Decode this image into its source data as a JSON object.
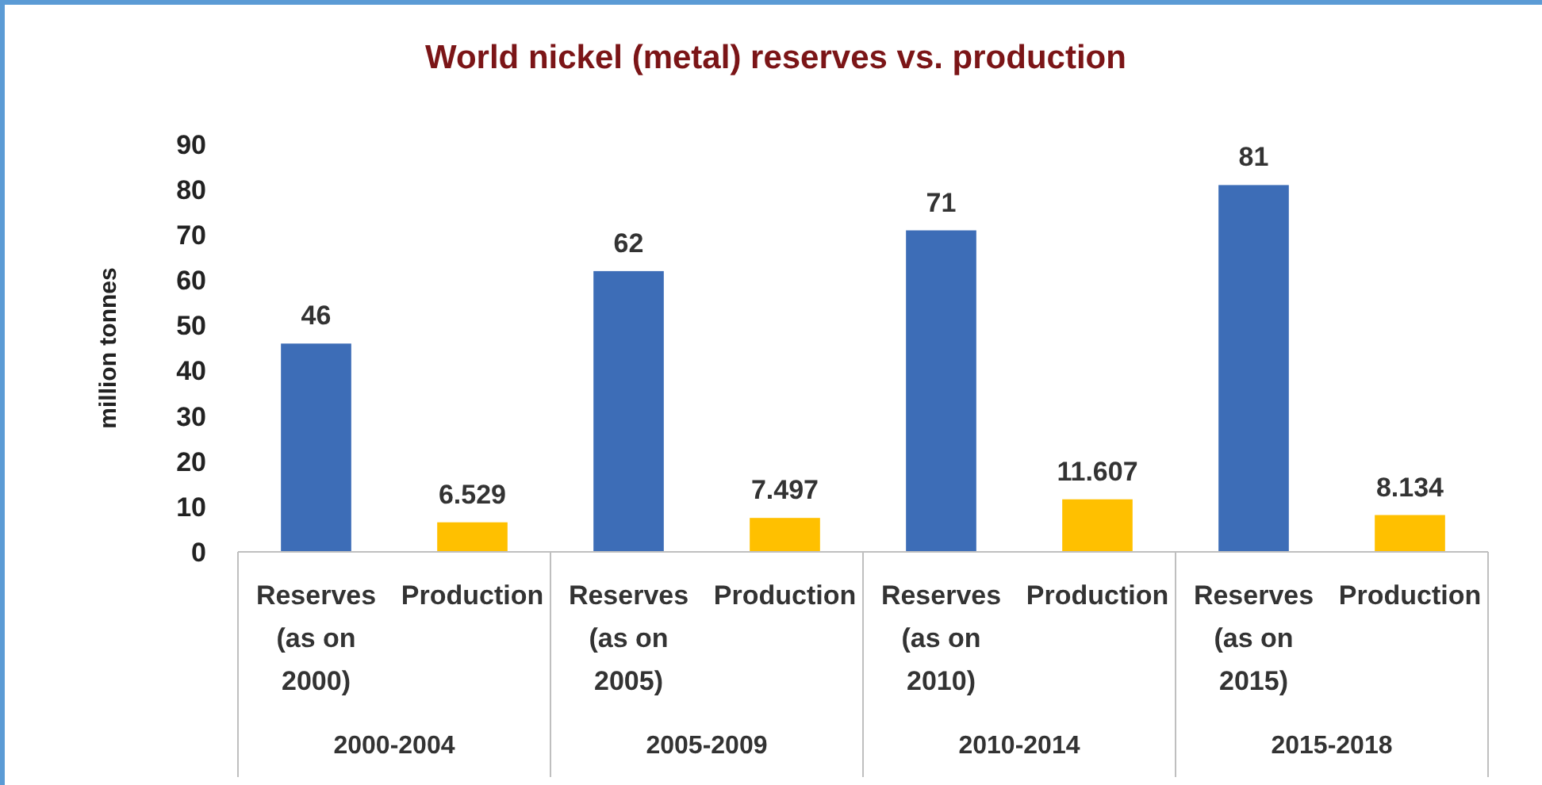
{
  "chart_data": {
    "type": "bar",
    "title": "World nickel (metal) reserves vs. production",
    "ylabel": "million tonnes",
    "categories": [
      "Reserves (as on 2000)",
      "Production",
      "Reserves (as on 2005)",
      "Production",
      "Reserves (as on 2010)",
      "Production",
      "Reserves (as on 2015)",
      "Production"
    ],
    "values": [
      46,
      6.529,
      62,
      7.497,
      71,
      11.607,
      81,
      8.134
    ],
    "colors": [
      "#3d6db7",
      "#ffc000",
      "#3d6db7",
      "#ffc000",
      "#3d6db7",
      "#ffc000",
      "#3d6db7",
      "#ffc000"
    ],
    "annotations": [
      "2000-2004",
      "2005-2009",
      "2010-2014",
      "2015-2018"
    ],
    "ylim": [
      0,
      90
    ],
    "yticks": [
      0,
      10,
      20,
      30,
      40,
      50,
      60,
      70,
      80,
      90
    ],
    "data_labels": true,
    "grid": false
  }
}
